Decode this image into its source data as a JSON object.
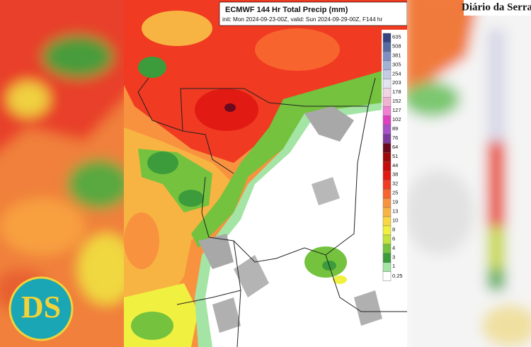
{
  "header": {
    "title": "ECMWF 144 Hr Total Precip (mm)",
    "subtitle": "init: Mon 2024-09-23-00Z, valid: Sun 2024-09-29-00Z, F144 hr"
  },
  "brand": {
    "name": "Diário da Serra",
    "logo": "DS"
  },
  "colorbar": {
    "levels": [
      635,
      508,
      381,
      305,
      254,
      203,
      178,
      152,
      127,
      102,
      89,
      76,
      64,
      51,
      44,
      38,
      32,
      25,
      19,
      13,
      10,
      8,
      6,
      4,
      3,
      1,
      0.25
    ],
    "colors": [
      "#34447e",
      "#566aa2",
      "#7d8fc2",
      "#a2b2d6",
      "#c4cce4",
      "#e2e4f2",
      "#f2d4e4",
      "#f0b2d2",
      "#f080d0",
      "#e040c0",
      "#a850c8",
      "#7c3a9c",
      "#6a0a1e",
      "#9c0a0a",
      "#c40a0a",
      "#e21a14",
      "#f03a22",
      "#f8642e",
      "#f8923e",
      "#f8b442",
      "#f8d842",
      "#f0f040",
      "#c2e23e",
      "#74c23e",
      "#3c9c3c",
      "#a4e4a4",
      "#ffffff"
    ]
  }
}
